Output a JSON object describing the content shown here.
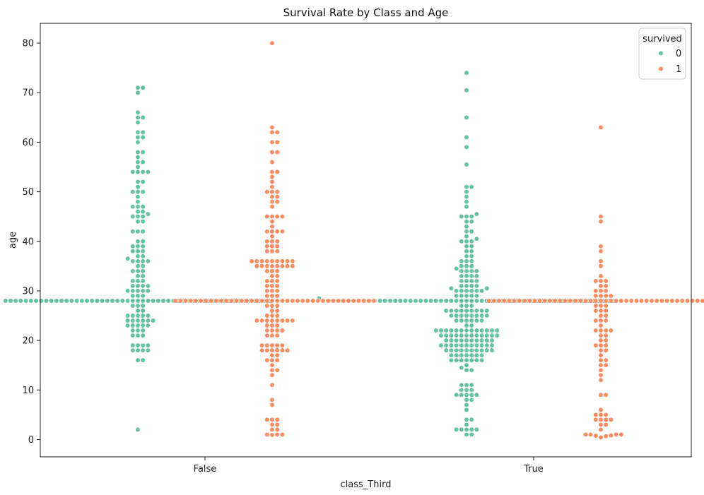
{
  "chart_data": {
    "type": "swarm",
    "title": "Survival Rate by Class and Age",
    "xlabel": "class_Third",
    "ylabel": "age",
    "categories": [
      "False",
      "True"
    ],
    "yticks": [
      0,
      10,
      20,
      30,
      40,
      50,
      60,
      70,
      80
    ],
    "ylim": [
      -3.5,
      84
    ],
    "grid": false,
    "legend": {
      "title": "survived",
      "placement": "top-right",
      "entries": [
        {
          "label": "0",
          "color": "#66c2a5"
        },
        {
          "label": "1",
          "color": "#fc8d62"
        }
      ]
    },
    "series": [
      {
        "name": "0",
        "color": "#66c2a5",
        "groups": [
          {
            "category": "False",
            "ages": [
              2,
              16,
              16,
              18,
              18,
              18,
              18,
              19,
              19,
              19,
              19,
              21,
              21,
              21,
              22,
              22,
              22,
              23,
              23,
              23,
              23,
              23,
              24,
              24,
              24,
              24,
              24,
              24,
              25,
              25,
              25,
              25,
              25,
              26,
              26,
              27,
              27,
              27,
              28,
              28,
              28,
              28,
              28,
              28,
              28,
              28,
              28,
              28,
              28,
              28,
              28,
              28,
              28,
              28,
              28,
              28,
              28,
              28,
              28,
              28,
              28,
              28,
              28,
              28,
              28,
              28,
              28,
              28,
              28,
              28,
              28,
              28,
              28,
              28,
              28,
              28,
              28,
              28,
              28,
              28,
              28,
              28,
              28,
              28,
              28,
              28,
              28,
              28,
              28,
              28,
              28,
              29,
              29,
              29,
              30,
              30,
              30,
              30,
              30,
              31,
              31,
              31,
              31,
              32,
              32,
              32,
              33,
              33,
              34,
              34,
              34,
              35,
              35,
              36,
              36,
              36,
              36,
              36.5,
              37,
              37,
              38,
              38,
              38,
              39,
              39,
              39,
              40,
              40,
              42,
              42,
              42,
              44,
              44,
              45,
              45,
              45,
              45.5,
              46,
              46,
              47,
              47,
              47,
              48,
              49,
              50,
              50,
              50,
              51,
              52,
              52,
              54,
              54,
              54,
              54,
              55,
              56,
              56,
              57,
              58,
              58,
              60,
              61,
              61,
              62,
              62,
              64,
              65,
              65,
              66,
              70,
              71,
              71
            ]
          },
          {
            "category": "True",
            "ages": [
              1,
              1,
              2,
              2,
              2,
              2,
              2,
              3,
              4,
              4,
              6,
              7,
              8,
              8,
              9,
              9,
              9,
              9,
              9,
              10,
              10,
              10,
              11,
              11,
              11,
              14,
              14,
              14.5,
              15,
              16,
              16,
              16,
              16,
              16,
              16,
              16,
              17,
              17,
              17,
              17,
              17,
              17,
              17,
              18,
              18,
              18,
              18,
              18,
              18,
              18,
              18,
              18,
              18,
              19,
              19,
              19,
              19,
              19,
              19,
              19,
              19,
              19,
              19,
              19,
              20,
              20,
              20,
              20,
              20,
              20,
              20,
              20,
              20,
              20,
              21,
              21,
              21,
              21,
              21,
              21,
              21,
              21,
              21,
              21,
              21,
              21,
              22,
              22,
              22,
              22,
              22,
              22,
              22,
              22,
              22,
              22,
              22,
              22,
              22,
              23,
              23,
              24,
              24,
              24,
              24,
              24,
              24,
              25,
              25,
              25,
              25,
              25,
              25,
              25,
              25,
              26,
              26,
              26,
              26,
              26,
              26,
              26,
              26,
              26,
              27,
              27,
              27,
              28,
              28,
              28,
              28,
              28,
              28,
              28,
              28,
              28,
              28,
              28,
              28,
              28,
              28,
              28,
              28,
              28,
              28,
              28,
              28,
              28,
              28,
              28,
              28,
              28,
              28,
              28,
              28,
              28,
              28,
              28,
              28,
              28,
              28,
              28,
              28,
              28,
              28,
              28,
              28,
              28,
              28,
              28,
              28,
              28,
              28,
              28,
              28,
              28,
              28,
              28,
              28,
              28,
              28,
              28,
              28,
              28,
              28,
              28.5,
              29,
              29,
              29,
              29,
              29,
              30,
              30,
              30,
              30,
              30,
              30,
              30.5,
              30.5,
              31,
              31,
              31,
              31,
              32,
              32,
              32,
              32,
              33,
              33,
              33,
              33,
              34,
              34,
              34,
              34,
              34.5,
              35,
              35,
              35,
              36,
              36,
              36,
              37,
              37,
              38,
              38,
              39,
              39,
              40,
              40,
              40,
              40.5,
              41,
              42,
              42,
              43,
              44,
              44,
              45,
              45,
              45,
              45.5,
              47,
              48,
              49,
              50,
              51,
              51,
              55.5,
              59,
              61,
              65,
              70.5,
              74
            ]
          }
        ]
      },
      {
        "name": "1",
        "color": "#fc8d62",
        "groups": [
          {
            "category": "False",
            "ages": [
              0.92,
              1,
              1,
              1,
              2,
              2,
              3,
              3,
              4,
              4,
              4,
              7,
              8,
              11,
              13,
              14,
              14,
              15,
              16,
              16,
              16,
              17,
              17,
              18,
              18,
              18,
              18,
              18,
              18,
              19,
              19,
              19,
              19,
              19,
              21,
              21,
              21,
              22,
              22,
              22,
              22,
              23,
              23,
              23,
              24,
              24,
              24,
              24,
              24,
              24,
              24,
              24,
              25,
              25,
              25,
              26,
              26,
              27,
              27,
              27,
              28,
              28,
              28,
              28,
              28,
              28,
              28,
              28,
              28,
              28,
              28,
              28,
              28,
              28,
              28,
              28,
              28,
              28,
              28,
              28,
              28,
              28,
              28,
              28,
              28,
              28,
              28,
              28,
              28,
              28,
              28,
              28,
              28,
              28,
              28,
              28,
              28,
              28,
              28,
              28,
              29,
              29,
              29,
              30,
              30,
              30,
              31,
              31,
              31,
              32,
              32,
              32,
              33,
              33,
              34,
              34,
              34,
              35,
              35,
              35,
              35,
              35,
              35,
              35,
              35,
              36,
              36,
              36,
              36,
              36,
              36,
              36,
              36,
              36,
              38,
              38,
              38,
              39,
              39,
              39,
              40,
              40,
              40,
              41,
              42,
              42,
              42,
              42,
              43,
              44,
              45,
              45,
              45,
              45,
              47,
              48,
              48,
              49,
              49,
              50,
              50,
              50,
              51,
              52,
              53,
              54,
              54,
              56,
              58,
              58,
              60,
              60,
              62,
              62,
              63,
              80
            ]
          },
          {
            "category": "True",
            "ages": [
              0.42,
              0.67,
              0.75,
              0.83,
              1,
              1,
              1,
              1,
              2,
              3,
              3,
              4,
              4,
              4,
              4,
              5,
              5,
              5,
              6,
              9,
              9,
              12,
              13,
              14,
              15,
              15,
              16,
              16,
              17,
              18,
              18,
              19,
              19,
              19,
              20,
              20,
              21,
              21,
              22,
              22,
              22,
              22,
              23,
              24,
              24,
              24,
              25,
              25,
              26,
              26,
              26,
              27,
              27,
              27,
              28,
              28,
              28,
              28,
              28,
              28,
              28,
              28,
              28,
              28,
              28,
              28,
              28,
              28,
              28,
              28,
              28,
              28,
              28,
              28,
              28,
              28,
              28,
              28,
              28,
              28,
              28,
              28,
              28,
              28,
              28,
              28,
              28,
              28,
              28,
              28,
              28,
              28,
              28,
              28,
              28,
              28,
              28,
              28,
              28,
              28,
              29,
              29,
              29,
              29,
              30,
              30,
              30,
              31,
              31,
              32,
              32,
              32,
              33,
              35,
              36,
              38,
              39,
              44,
              45,
              63
            ]
          }
        ]
      }
    ]
  }
}
